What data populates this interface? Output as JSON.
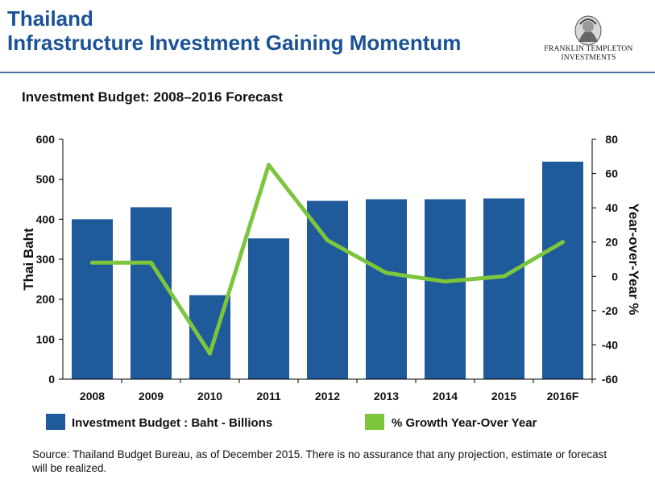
{
  "header": {
    "title_line1": "Thailand",
    "title_line2": "Infrastructure Investment Gaining Momentum",
    "logo_line1": "FRANKLIN TEMPLETON",
    "logo_line2": "INVESTMENTS"
  },
  "source_note": "Source: Thailand Budget Bureau, as of December 2015. There is no assurance that any projection, estimate or forecast will be realized.",
  "colors": {
    "title": "#1a5296",
    "bar": "#1f5a9a",
    "line": "#7dc53c",
    "rule": "#4a6fa0"
  },
  "chart_data": {
    "type": "bar",
    "title": "Investment Budget: 2008–2016 Forecast",
    "categories": [
      "2008",
      "2009",
      "2010",
      "2011",
      "2012",
      "2013",
      "2014",
      "2015",
      "2016F"
    ],
    "series": [
      {
        "name": "Investment Budget : Baht - Billions",
        "type": "bar",
        "axis": "left",
        "values": [
          400,
          430,
          210,
          352,
          446,
          450,
          450,
          452,
          544
        ]
      },
      {
        "name": "% Growth Year-Over Year",
        "type": "line",
        "axis": "right",
        "values": [
          8,
          8,
          -45,
          65,
          21,
          2,
          -3,
          0,
          20
        ]
      }
    ],
    "ylabel": "Thai Baht",
    "ylim": [
      0,
      600
    ],
    "yticks": [
      "0",
      "100",
      "200",
      "300",
      "400",
      "500",
      "600"
    ],
    "y2label": "Year-over-Year %",
    "y2lim": [
      -60,
      80
    ],
    "y2ticks": [
      "-60",
      "-40",
      "-20",
      "0",
      "20",
      "40",
      "60",
      "80"
    ],
    "grid": false,
    "legend": "bottom"
  }
}
